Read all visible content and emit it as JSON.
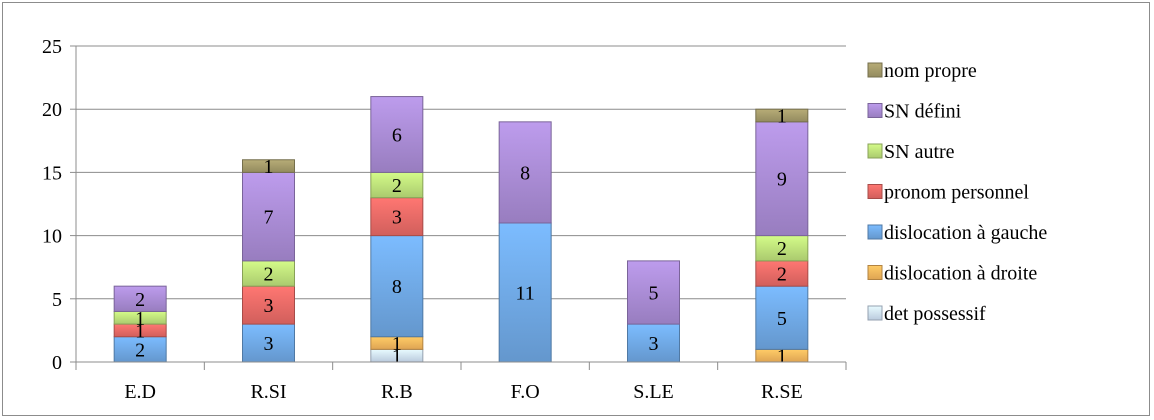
{
  "chart_data": {
    "type": "bar",
    "stacked": true,
    "categories": [
      "E.D",
      "R.SI",
      "R.B",
      "F.O",
      "S.LE",
      "R.SE"
    ],
    "ylim": [
      0,
      25
    ],
    "yticks": [
      0,
      5,
      10,
      15,
      20,
      25
    ],
    "grid": true,
    "legend_position": "right",
    "series": [
      {
        "name": "det possessif",
        "color": "#cfe0f5",
        "values": [
          0,
          0,
          1,
          0,
          0,
          0
        ],
        "labels": [
          "",
          "",
          "1",
          "",
          "",
          ""
        ]
      },
      {
        "name": "dislocation à droite",
        "color": "#f7b65c",
        "values": [
          0,
          0,
          1,
          0,
          0,
          1
        ],
        "labels": [
          "",
          "",
          "1",
          "",
          "",
          "1"
        ]
      },
      {
        "name": "dislocation à gauche",
        "color": "#6fa8e4",
        "values": [
          2,
          3,
          8,
          11,
          3,
          5
        ],
        "labels": [
          "2",
          "3",
          "8",
          "11",
          "3",
          "5"
        ]
      },
      {
        "name": "pronom personnel",
        "color": "#e86a66",
        "values": [
          1,
          3,
          3,
          0,
          0,
          2
        ],
        "labels": [
          "1",
          "3",
          "3",
          "",
          "",
          "2"
        ]
      },
      {
        "name": "SN autre",
        "color": "#bde07a",
        "values": [
          1,
          2,
          2,
          0,
          0,
          2
        ],
        "labels": [
          "1",
          "2",
          "2",
          "",
          "",
          "2"
        ]
      },
      {
        "name": "SN défini",
        "color": "#a98bd4",
        "values": [
          2,
          7,
          6,
          8,
          5,
          9
        ],
        "labels": [
          "2",
          "7",
          "6",
          "8",
          "5",
          "9"
        ]
      },
      {
        "name": "nom propre",
        "color": "#a39a6a",
        "values": [
          0,
          1,
          0,
          0,
          0,
          1
        ],
        "labels": [
          "",
          "1",
          "",
          "",
          "",
          "1"
        ]
      }
    ],
    "legend_order": [
      "nom propre",
      "SN défini",
      "SN autre",
      "pronom personnel",
      "dislocation à gauche",
      "dislocation à droite",
      "det possessif"
    ]
  }
}
